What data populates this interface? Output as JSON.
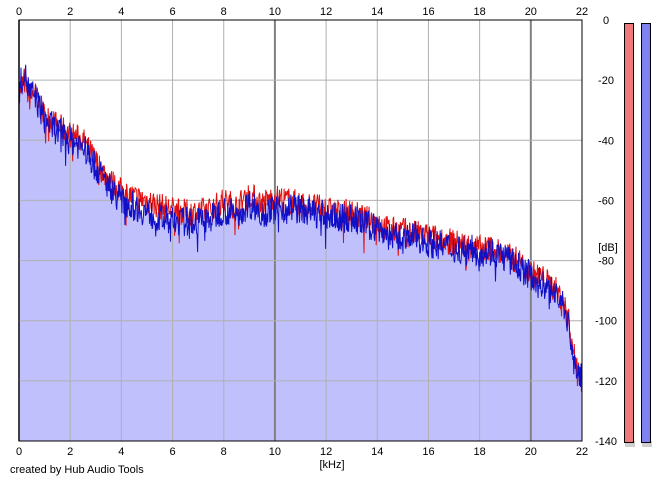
{
  "credit": "created by Hub Audio Tools",
  "meters": {
    "left_color": "#f07878",
    "right_color": "#8080f0"
  },
  "colors": {
    "fill": "#c0c0fc",
    "left_channel": "#e01010",
    "right_channel": "#1010c8",
    "grid": "#b0b0b0",
    "grid_major": "#808080"
  },
  "chart_data": {
    "type": "line",
    "xlabel": "[kHz]",
    "ylabel": "[dB]",
    "xlim": [
      0,
      22
    ],
    "ylim": [
      -140,
      0
    ],
    "x_ticks": [
      "0",
      "2",
      "4",
      "6",
      "8",
      "10",
      "12",
      "14",
      "16",
      "18",
      "20",
      "22"
    ],
    "y_ticks": [
      "0",
      "-20",
      "-40",
      "-60",
      "-80",
      "-100",
      "-120",
      "-140"
    ],
    "grid": true,
    "x_tick_positions": [
      0,
      2,
      4,
      6,
      8,
      10,
      12,
      14,
      16,
      18,
      20,
      22
    ],
    "y_tick_positions": [
      0,
      -20,
      -40,
      -60,
      -80,
      -100,
      -120,
      -140
    ],
    "series": [
      {
        "channel": "left",
        "x": [
          0,
          0.1,
          0.2,
          0.4,
          0.6,
          0.8,
          1,
          1.5,
          2,
          2.5,
          3,
          3.5,
          4,
          4.5,
          5,
          5.5,
          6,
          6.5,
          7,
          7.5,
          8,
          8.5,
          9,
          9.5,
          10,
          10.5,
          11,
          11.5,
          12,
          12.5,
          13,
          13.5,
          14,
          14.5,
          15,
          15.5,
          16,
          16.5,
          17,
          17.5,
          18,
          18.5,
          19,
          19.5,
          20,
          20.5,
          21,
          21.3,
          21.5,
          21.7,
          22
        ],
        "values": [
          -24,
          -22,
          -20,
          -26,
          -24,
          -28,
          -32,
          -35,
          -38,
          -40,
          -47,
          -53,
          -57,
          -59,
          -60,
          -62,
          -63,
          -64,
          -64,
          -63,
          -60,
          -62,
          -58,
          -61,
          -59,
          -60,
          -61,
          -62,
          -63,
          -64,
          -64,
          -66,
          -67,
          -70,
          -70,
          -71,
          -72,
          -73,
          -74,
          -75,
          -76,
          -76,
          -78,
          -80,
          -84,
          -86,
          -90,
          -94,
          -101,
          -112,
          -118
        ]
      },
      {
        "channel": "right",
        "x": [
          0,
          0.1,
          0.2,
          0.4,
          0.6,
          0.8,
          1,
          1.5,
          2,
          2.5,
          3,
          3.5,
          4,
          4.5,
          5,
          5.5,
          6,
          6.5,
          7,
          7.5,
          8,
          8.5,
          9,
          9.5,
          10,
          10.5,
          11,
          11.5,
          12,
          12.5,
          13,
          13.5,
          14,
          14.5,
          15,
          15.5,
          16,
          16.5,
          17,
          17.5,
          18,
          18.5,
          19,
          19.5,
          20,
          20.5,
          21,
          21.3,
          21.5,
          21.7,
          22
        ],
        "values": [
          -24,
          -20,
          -17,
          -24,
          -25,
          -29,
          -33,
          -37,
          -40,
          -42,
          -49,
          -55,
          -60,
          -62,
          -64,
          -66,
          -67,
          -67,
          -67,
          -66,
          -63,
          -65,
          -61,
          -64,
          -63,
          -62,
          -63,
          -64,
          -65,
          -66,
          -66,
          -68,
          -69,
          -72,
          -73,
          -72,
          -74,
          -75,
          -76,
          -76,
          -77,
          -77,
          -79,
          -82,
          -85,
          -88,
          -91,
          -95,
          -103,
          -114,
          -120
        ]
      }
    ]
  }
}
